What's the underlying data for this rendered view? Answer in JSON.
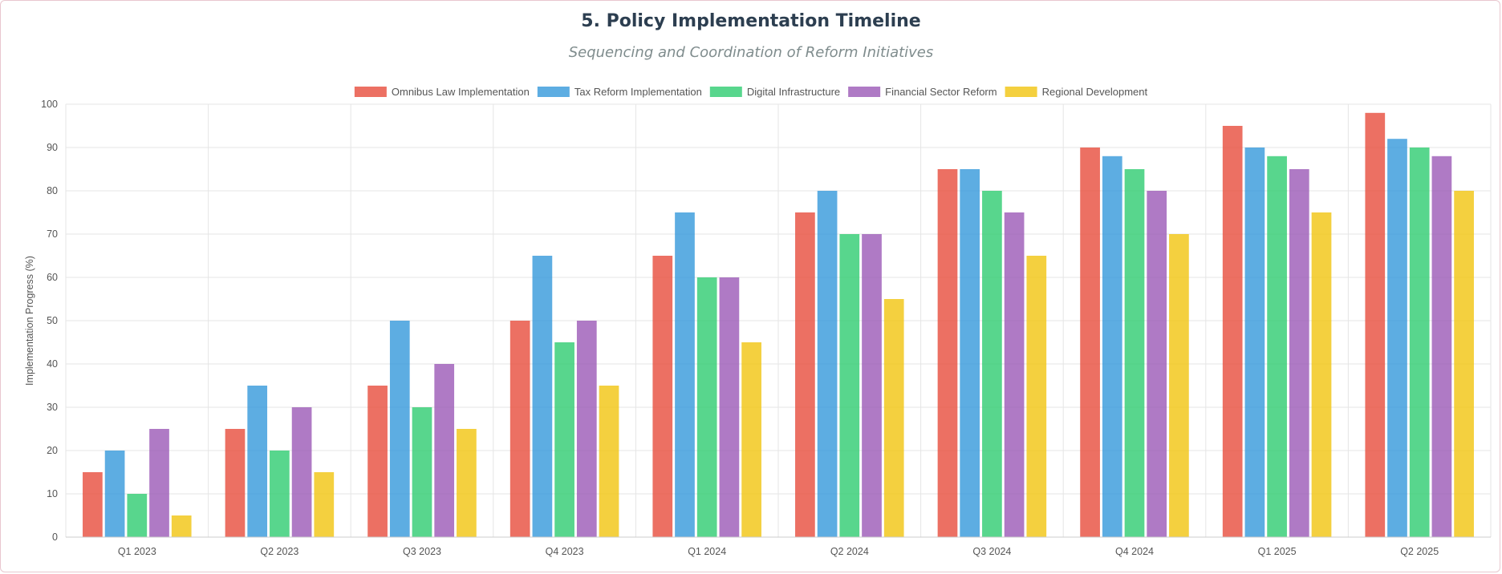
{
  "chart_data": {
    "type": "bar",
    "title": "5. Policy Implementation Timeline",
    "subtitle": "Sequencing and Coordination of Reform Initiatives",
    "xlabel": "",
    "ylabel": "Implementation Progress (%)",
    "ylim": [
      0,
      100
    ],
    "ytick_step": 10,
    "grid": true,
    "legend_position": "top",
    "categories": [
      "Q1 2023",
      "Q2 2023",
      "Q3 2023",
      "Q4 2023",
      "Q1 2024",
      "Q2 2024",
      "Q3 2024",
      "Q4 2024",
      "Q1 2025",
      "Q2 2025"
    ],
    "series": [
      {
        "name": "Omnibus Law Implementation",
        "color": "#e74c3c",
        "values": [
          15,
          25,
          35,
          50,
          65,
          75,
          85,
          90,
          95,
          98
        ]
      },
      {
        "name": "Tax Reform Implementation",
        "color": "#3498db",
        "values": [
          20,
          35,
          50,
          65,
          75,
          80,
          85,
          88,
          90,
          92
        ]
      },
      {
        "name": "Digital Infrastructure",
        "color": "#2ecc71",
        "values": [
          10,
          20,
          30,
          45,
          60,
          70,
          80,
          85,
          88,
          90
        ]
      },
      {
        "name": "Financial Sector Reform",
        "color": "#9b59b6",
        "values": [
          25,
          30,
          40,
          50,
          60,
          70,
          75,
          80,
          85,
          88
        ]
      },
      {
        "name": "Regional Development",
        "color": "#f1c40f",
        "values": [
          5,
          15,
          25,
          35,
          45,
          55,
          65,
          70,
          75,
          80
        ]
      }
    ]
  }
}
